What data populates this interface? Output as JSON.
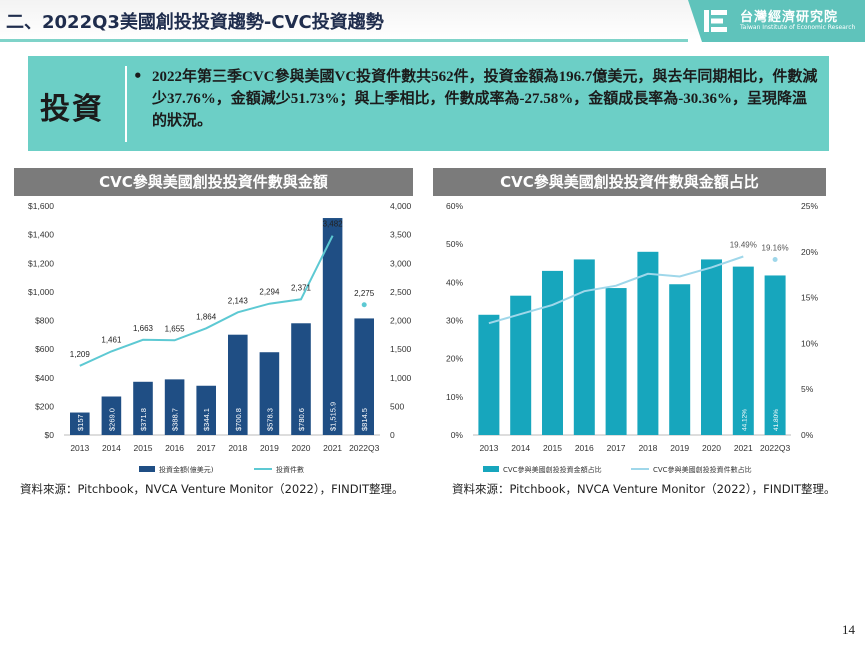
{
  "header": {
    "title": "二、2022Q3美國創投投資趨勢-CVC投資趨勢",
    "logo_cn": "台灣經濟研究院",
    "logo_en": "Taiwan Institute of Economic Research"
  },
  "investment": {
    "label": "投資",
    "bullet": "•",
    "text": "2022年第三季CVC參與美國VC投資件數共562件，投資金額為196.7億美元，與去年同期相比，件數減少37.76%，金額減少51.73%；與上季相比，件數成率為-27.58%，金額成長率為-30.36%，呈現降溫的狀況。"
  },
  "colors": {
    "bar_left": "#1f4e84",
    "line_left": "#5dc9d3",
    "bar_right": "#17a6bd",
    "line_right": "#9fd7ea",
    "box": "#6ccfc6",
    "banner": "#7b7b7b"
  },
  "chart_data": [
    {
      "type": "bar",
      "title": "CVC參與美國創投投資件數與金額",
      "categories": [
        "2013",
        "2014",
        "2015",
        "2016",
        "2017",
        "2018",
        "2019",
        "2020",
        "2021",
        "2022Q3"
      ],
      "series": [
        {
          "name": "投資金額(億美元)",
          "type": "bar",
          "axis": "left",
          "values": [
            157,
            269.0,
            371.8,
            388.7,
            344.1,
            700.8,
            578.3,
            780.6,
            1515.9,
            814.5
          ],
          "labels": [
            "$157",
            "$269.0",
            "$371.8",
            "$388.7",
            "$344.1",
            "$700.8",
            "$578.3",
            "$780.6",
            "$1,515.9",
            "$814.5"
          ]
        },
        {
          "name": "投資件數",
          "type": "line",
          "axis": "right",
          "values": [
            1209,
            1461,
            1663,
            1655,
            1864,
            2143,
            2294,
            2371,
            3482,
            2275
          ],
          "labels": [
            "1,209",
            "1,461",
            "1,663",
            "1,655",
            "1,864",
            "2,143",
            "2,294",
            "2,371",
            "3,482",
            "2,275"
          ]
        }
      ],
      "y_left": {
        "ticks": [
          "$0",
          "$200",
          "$400",
          "$600",
          "$800",
          "$1,000",
          "$1,200",
          "$1,400",
          "$1,600"
        ],
        "range": [
          0,
          1600
        ]
      },
      "y_right": {
        "ticks": [
          "0",
          "500",
          "1,000",
          "1,500",
          "2,000",
          "2,500",
          "3,000",
          "3,500",
          "4,000"
        ],
        "range": [
          0,
          4000
        ]
      },
      "legend_position": "bottom",
      "source": "資料來源：Pitchbook，NVCA Venture Monitor（2022），FINDIT整理。"
    },
    {
      "type": "bar",
      "title": "CVC參與美國創投投資件數與金額占比",
      "categories": [
        "2013",
        "2014",
        "2015",
        "2016",
        "2017",
        "2018",
        "2019",
        "2020",
        "2021",
        "2022Q3"
      ],
      "series": [
        {
          "name": "CVC參與美國創投投資金額占比",
          "type": "bar",
          "axis": "left",
          "values": [
            31.5,
            36.5,
            43,
            46,
            38.5,
            48,
            39.5,
            46,
            44.12,
            41.8
          ],
          "labels": [
            "",
            "",
            "",
            "",
            "",
            "",
            "",
            "",
            "44.12%",
            "41.80%"
          ]
        },
        {
          "name": "CVC參與美國創投投資件數占比",
          "type": "line",
          "axis": "right",
          "values": [
            12.2,
            13.2,
            14.2,
            15.7,
            16.3,
            17.6,
            17.3,
            18.3,
            19.49,
            19.16
          ],
          "labels": [
            "",
            "",
            "",
            "",
            "",
            "",
            "",
            "",
            "19.49%",
            "19.16%"
          ]
        }
      ],
      "y_left": {
        "ticks": [
          "0%",
          "10%",
          "20%",
          "30%",
          "40%",
          "50%",
          "60%"
        ],
        "range": [
          0,
          60
        ]
      },
      "y_right": {
        "ticks": [
          "0%",
          "5%",
          "10%",
          "15%",
          "20%",
          "25%"
        ],
        "range": [
          0,
          25
        ]
      },
      "legend_position": "bottom",
      "source": "資料來源：Pitchbook，NVCA Venture Monitor（2022），FINDIT整理。"
    }
  ],
  "page_number": "14"
}
